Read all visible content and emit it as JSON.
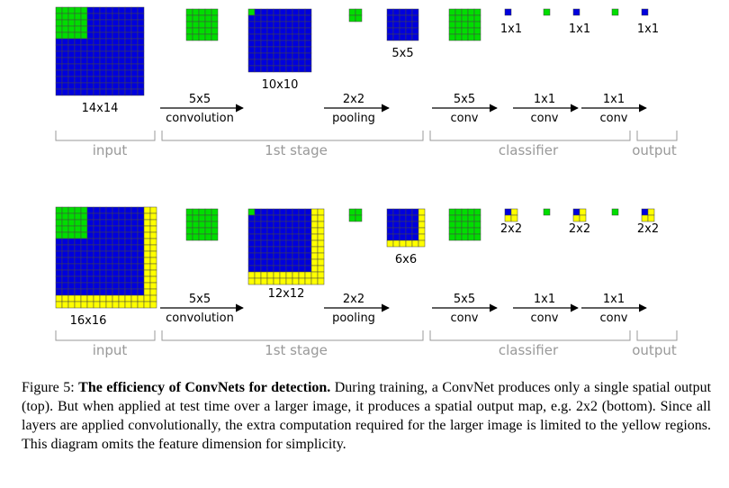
{
  "colors": {
    "blue": "#0000dd",
    "green": "#00dd00",
    "yellow": "#ffff00",
    "grid": "#444444",
    "bracket": "#999999"
  },
  "rows": [
    {
      "input_size": 14,
      "input_label": "14x14",
      "stage1_size": 10,
      "stage1_label": "10x10",
      "pool_size": 5,
      "pool_label": "5x5",
      "out_label": "1x1",
      "out_size": 1,
      "ops": [
        {
          "top": "5x5",
          "bottom": "convolution"
        },
        {
          "top": "2x2",
          "bottom": "pooling"
        },
        {
          "top": "5x5",
          "bottom": "conv"
        },
        {
          "top": "1x1",
          "bottom": "conv"
        },
        {
          "top": "1x1",
          "bottom": "conv"
        }
      ],
      "sections": [
        "input",
        "1st stage",
        "classifier",
        "output"
      ]
    },
    {
      "input_size": 16,
      "input_label": "16x16",
      "stage1_size": 12,
      "stage1_label": "12x12",
      "pool_size": 6,
      "pool_label": "6x6",
      "out_label": "2x2",
      "out_size": 2,
      "ops": [
        {
          "top": "5x5",
          "bottom": "convolution"
        },
        {
          "top": "2x2",
          "bottom": "pooling"
        },
        {
          "top": "5x5",
          "bottom": "conv"
        },
        {
          "top": "1x1",
          "bottom": "conv"
        },
        {
          "top": "1x1",
          "bottom": "conv"
        }
      ],
      "sections": [
        "input",
        "1st stage",
        "classifier",
        "output"
      ]
    }
  ],
  "caption": {
    "prefix": "Figure 5: ",
    "bold": "The efficiency of ConvNets for detection.",
    "text": " During training, a ConvNet produces only a single spatial output (top). But when applied at test time over a larger image, it produces a spatial output map, e.g. 2x2 (bottom). Since all layers are applied convolutionally, the extra computation required for the larger image is limited to the yellow regions. This diagram omits the feature dimension for simplicity."
  }
}
